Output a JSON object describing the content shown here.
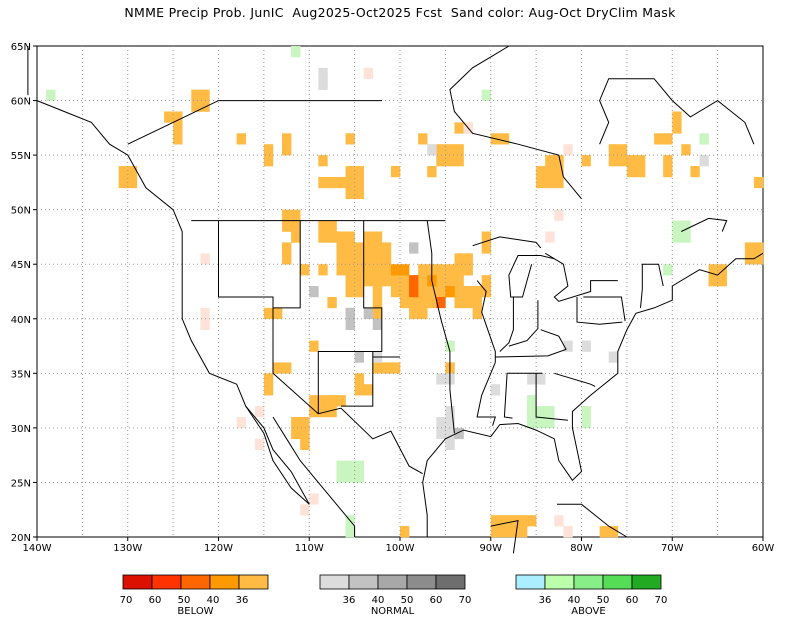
{
  "title": "NMME Precip Prob. JunIC  Aug2025-Oct2025 Fcst  Sand color: Aug-Oct DryClim Mask",
  "map": {
    "projection": "lat-lon",
    "lon_range": [
      -140,
      -60
    ],
    "lat_range": [
      20,
      65
    ],
    "lon_ticks": [
      "140W",
      "130W",
      "120W",
      "110W",
      "100W",
      "90W",
      "80W",
      "70W",
      "60W"
    ],
    "lat_ticks": [
      "20N",
      "25N",
      "30N",
      "35N",
      "40N",
      "45N",
      "50N",
      "55N",
      "60N",
      "65N"
    ],
    "grid": "dotted"
  },
  "legend": {
    "below": {
      "title": "BELOW",
      "labels": [
        "70",
        "60",
        "50",
        "40",
        "36"
      ],
      "colors": [
        "#dd1100",
        "#ff3300",
        "#ff6600",
        "#ff9900",
        "#ffbb44"
      ]
    },
    "normal": {
      "title": "NORMAL",
      "labels": [
        "36",
        "40",
        "50",
        "60",
        "70"
      ],
      "colors": [
        "#dcdcdc",
        "#c2c2c2",
        "#a8a8a8",
        "#8c8c8c",
        "#6e6e6e"
      ]
    },
    "above": {
      "title": "ABOVE",
      "labels": [
        "36",
        "40",
        "50",
        "60",
        "70"
      ],
      "colors": [
        "#aaeeff",
        "#bbffaa",
        "#88ee88",
        "#55dd55",
        "#22aa22"
      ]
    }
  },
  "colors": {
    "dryclim_mask": "#ffe3d8",
    "above_light": "#c8f5c0",
    "grid": "#999999"
  }
}
